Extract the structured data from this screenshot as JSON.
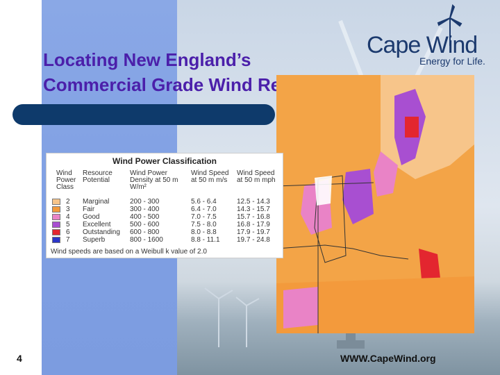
{
  "slide": {
    "title_line1": "Locating New England’s",
    "title_line2": "Commercial Grade Wind Resources",
    "number": "4",
    "url": "WWW.CapeWind.org"
  },
  "logo": {
    "name": "Cape Wind",
    "tagline": "Energy for Life."
  },
  "legend": {
    "title": "Wind Power Classification",
    "headers": [
      "Wind Power Class",
      "Resource Potential",
      "Wind Power Density at 50 m W/m²",
      "Wind Speed at 50 m m/s",
      "Wind Speed at 50 m mph"
    ],
    "rows": [
      {
        "class": "2",
        "potential": "Marginal",
        "density": "200 - 300",
        "ms": "5.6 - 6.4",
        "mph": "12.5 - 14.3",
        "color": "#f7c58a"
      },
      {
        "class": "3",
        "potential": "Fair",
        "density": "300 - 400",
        "ms": "6.4 - 7.0",
        "mph": "14.3 - 15.7",
        "color": "#f39a3c"
      },
      {
        "class": "4",
        "potential": "Good",
        "density": "400 - 500",
        "ms": "7.0 - 7.5",
        "mph": "15.7 - 16.8",
        "color": "#e983c6"
      },
      {
        "class": "5",
        "potential": "Excellent",
        "density": "500 - 600",
        "ms": "7.5 - 8.0",
        "mph": "16.8 - 17.9",
        "color": "#a84fd1"
      },
      {
        "class": "6",
        "potential": "Outstanding",
        "density": "600 - 800",
        "ms": "8.0 - 8.8",
        "mph": "17.9 - 19.7",
        "color": "#e3262f"
      },
      {
        "class": "7",
        "potential": "Superb",
        "density": "800 - 1600",
        "ms": "8.8 - 11.1",
        "mph": "19.7 - 24.8",
        "color": "#2b35c8"
      }
    ],
    "footnote": "Wind speeds are based on a Weibull k value of 2.0"
  }
}
